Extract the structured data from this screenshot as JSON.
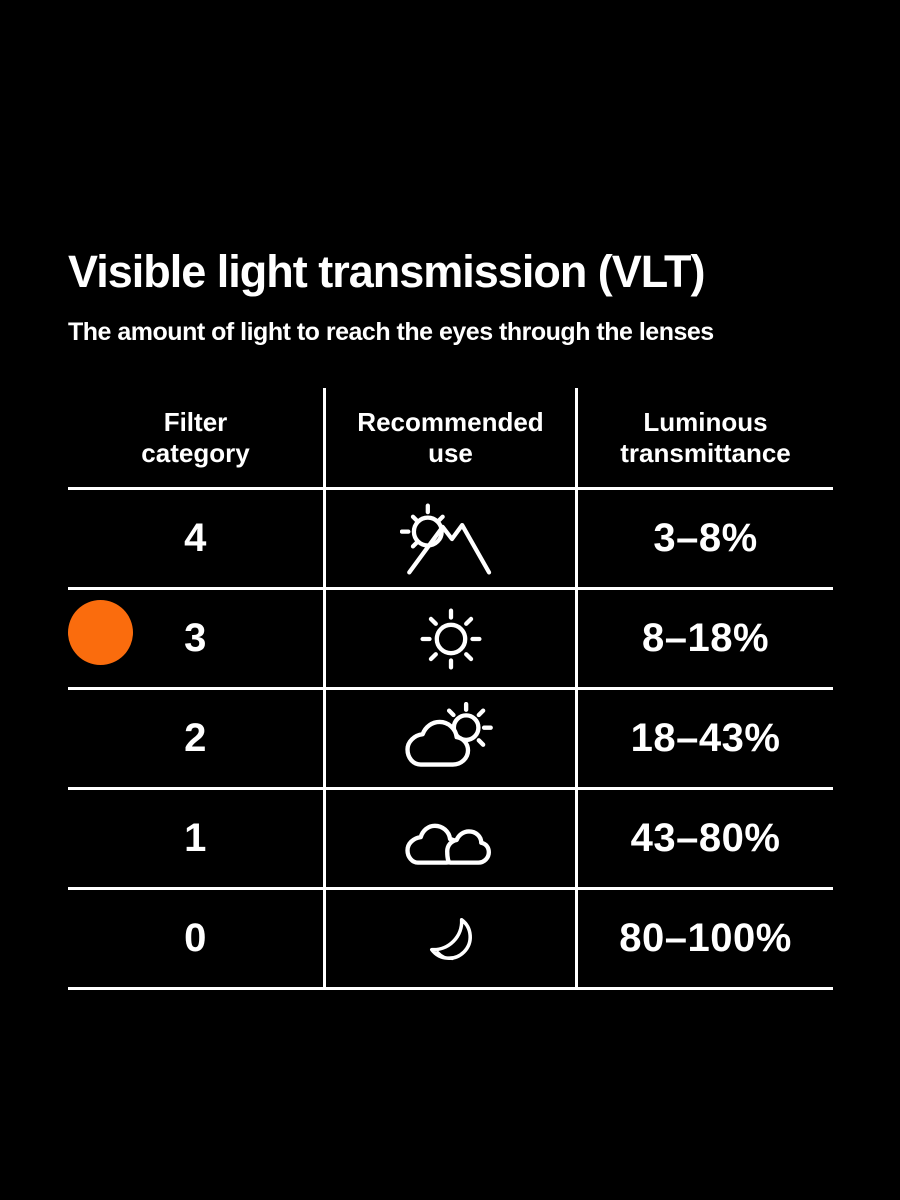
{
  "page": {
    "title": "Visible light transmission (VLT)",
    "subtitle": "The amount of light to reach the eyes through the lenses"
  },
  "table": {
    "columns": [
      {
        "id": "filter-category",
        "lines": [
          "Filter",
          "category"
        ]
      },
      {
        "id": "recommended-use",
        "lines": [
          "Recommended",
          "use"
        ]
      },
      {
        "id": "luminous-transmittance",
        "lines": [
          "Luminous",
          "transmittance"
        ]
      }
    ],
    "rows": [
      {
        "category": "4",
        "icon": "sun-behind-mountains-icon",
        "transmittance": "3–8%",
        "selected": false
      },
      {
        "category": "3",
        "icon": "sun-icon",
        "transmittance": "8–18%",
        "selected": true
      },
      {
        "category": "2",
        "icon": "sun-behind-cloud-icon",
        "transmittance": "18–43%",
        "selected": false
      },
      {
        "category": "1",
        "icon": "clouds-icon",
        "transmittance": "43–80%",
        "selected": false
      },
      {
        "category": "0",
        "icon": "moon-icon",
        "transmittance": "80–100%",
        "selected": false
      }
    ]
  },
  "chart_data": {
    "type": "table",
    "title": "Visible light transmission (VLT)",
    "subtitle": "The amount of light to reach the eyes through the lenses",
    "columns": [
      "Filter category",
      "Recommended use",
      "Luminous transmittance"
    ],
    "rows": [
      [
        "4",
        "sun behind mountains (bright snow/high altitude)",
        "3–8%"
      ],
      [
        "3",
        "full sun",
        "8–18%"
      ],
      [
        "2",
        "sun behind cloud (partly cloudy)",
        "18–43%"
      ],
      [
        "1",
        "clouds (overcast)",
        "43–80%"
      ],
      [
        "0",
        "moon (night)",
        "80–100%"
      ]
    ],
    "highlighted_row_category": "3",
    "layout": {
      "grid": "on",
      "header_position": "top"
    }
  },
  "colors": {
    "background": "#000000",
    "text": "#ffffff",
    "line": "#ffffff",
    "selected_marker": "#FA6C0D"
  }
}
